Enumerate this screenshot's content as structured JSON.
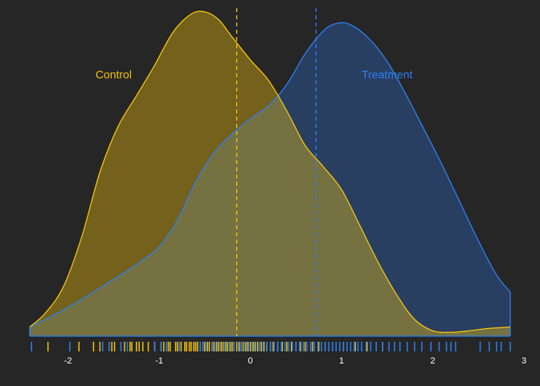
{
  "chart_data": {
    "type": "density",
    "xlim": [
      -2.42,
      2.85
    ],
    "ylim": [
      0,
      0.43
    ],
    "grid": false,
    "legend": "inline labels",
    "x_ticks": [
      {
        "value": -2,
        "label": "-2"
      },
      {
        "value": -1,
        "label": "-1"
      },
      {
        "value": 0,
        "label": "0"
      },
      {
        "value": 1,
        "label": "1"
      },
      {
        "value": 2,
        "label": "2"
      },
      {
        "value": 3,
        "label": "3"
      }
    ],
    "series": [
      {
        "name": "Control",
        "color": "#f4c20d",
        "fill": "#f4c20d",
        "mean": -0.15,
        "density": [
          [
            -2.42,
            0.012
          ],
          [
            -2.25,
            0.03
          ],
          [
            -2.05,
            0.065
          ],
          [
            -1.85,
            0.13
          ],
          [
            -1.65,
            0.215
          ],
          [
            -1.45,
            0.275
          ],
          [
            -1.25,
            0.315
          ],
          [
            -1.05,
            0.355
          ],
          [
            -0.85,
            0.398
          ],
          [
            -0.65,
            0.422
          ],
          [
            -0.5,
            0.425
          ],
          [
            -0.35,
            0.415
          ],
          [
            -0.2,
            0.392
          ],
          [
            0.0,
            0.362
          ],
          [
            0.2,
            0.335
          ],
          [
            0.4,
            0.295
          ],
          [
            0.6,
            0.25
          ],
          [
            0.8,
            0.222
          ],
          [
            1.0,
            0.192
          ],
          [
            1.2,
            0.145
          ],
          [
            1.4,
            0.097
          ],
          [
            1.6,
            0.055
          ],
          [
            1.8,
            0.022
          ],
          [
            2.0,
            0.007
          ],
          [
            2.2,
            0.005
          ],
          [
            2.4,
            0.007
          ],
          [
            2.6,
            0.01
          ],
          [
            2.85,
            0.012
          ]
        ],
        "rug": [
          -2.22,
          -1.88,
          -1.72,
          -1.65,
          -1.52,
          -1.49,
          -1.38,
          -1.32,
          -1.3,
          -1.25,
          -1.22,
          -1.18,
          -1.12,
          -1.05,
          -0.98,
          -0.95,
          -0.9,
          -0.88,
          -0.82,
          -0.8,
          -0.76,
          -0.72,
          -0.7,
          -0.67,
          -0.65,
          -0.62,
          -0.6,
          -0.58,
          -0.55,
          -0.52,
          -0.5,
          -0.47,
          -0.45,
          -0.42,
          -0.4,
          -0.37,
          -0.35,
          -0.32,
          -0.3,
          -0.27,
          -0.25,
          -0.22,
          -0.2,
          -0.18,
          -0.15,
          -0.12,
          -0.1,
          -0.08,
          -0.05,
          -0.03,
          0.0,
          0.03,
          0.05,
          0.08,
          0.12,
          0.15,
          0.18,
          0.22,
          0.25,
          0.3,
          0.35,
          0.4,
          0.45,
          0.5,
          0.55,
          0.6,
          0.68,
          0.75,
          0.82,
          0.9,
          1.02,
          1.15,
          1.28,
          1.45
        ]
      },
      {
        "name": "Treatment",
        "color": "#2e7ff0",
        "fill": "#2a4f87",
        "mean": 0.72,
        "density": [
          [
            -2.42,
            0.012
          ],
          [
            -2.2,
            0.025
          ],
          [
            -2.0,
            0.038
          ],
          [
            -1.8,
            0.052
          ],
          [
            -1.6,
            0.067
          ],
          [
            -1.4,
            0.082
          ],
          [
            -1.2,
            0.098
          ],
          [
            -1.0,
            0.117
          ],
          [
            -0.8,
            0.152
          ],
          [
            -0.6,
            0.202
          ],
          [
            -0.4,
            0.24
          ],
          [
            -0.2,
            0.265
          ],
          [
            0.0,
            0.285
          ],
          [
            0.2,
            0.302
          ],
          [
            0.4,
            0.33
          ],
          [
            0.6,
            0.37
          ],
          [
            0.8,
            0.4
          ],
          [
            0.95,
            0.41
          ],
          [
            1.1,
            0.408
          ],
          [
            1.3,
            0.39
          ],
          [
            1.5,
            0.36
          ],
          [
            1.7,
            0.318
          ],
          [
            1.9,
            0.272
          ],
          [
            2.1,
            0.225
          ],
          [
            2.3,
            0.175
          ],
          [
            2.5,
            0.125
          ],
          [
            2.7,
            0.08
          ],
          [
            2.85,
            0.058
          ]
        ],
        "rug": [
          -2.4,
          -1.98,
          -1.62,
          -1.55,
          -1.42,
          -1.35,
          -1.05,
          -0.98,
          -0.92,
          -0.78,
          -0.55,
          -0.52,
          -0.48,
          -0.42,
          -0.38,
          -0.33,
          -0.28,
          -0.23,
          -0.18,
          -0.13,
          -0.1,
          -0.06,
          -0.02,
          0.02,
          0.06,
          0.1,
          0.14,
          0.18,
          0.22,
          0.26,
          0.3,
          0.34,
          0.38,
          0.42,
          0.46,
          0.5,
          0.54,
          0.58,
          0.62,
          0.66,
          0.7,
          0.74,
          0.78,
          0.82,
          0.86,
          0.9,
          0.94,
          0.98,
          1.02,
          1.06,
          1.1,
          1.14,
          1.18,
          1.22,
          1.27,
          1.32,
          1.38,
          1.45,
          1.52,
          1.58,
          1.64,
          1.72,
          1.8,
          1.88,
          1.98,
          2.07,
          2.15,
          2.2,
          2.25,
          2.52,
          2.62,
          2.7,
          2.75,
          2.85
        ]
      }
    ]
  }
}
